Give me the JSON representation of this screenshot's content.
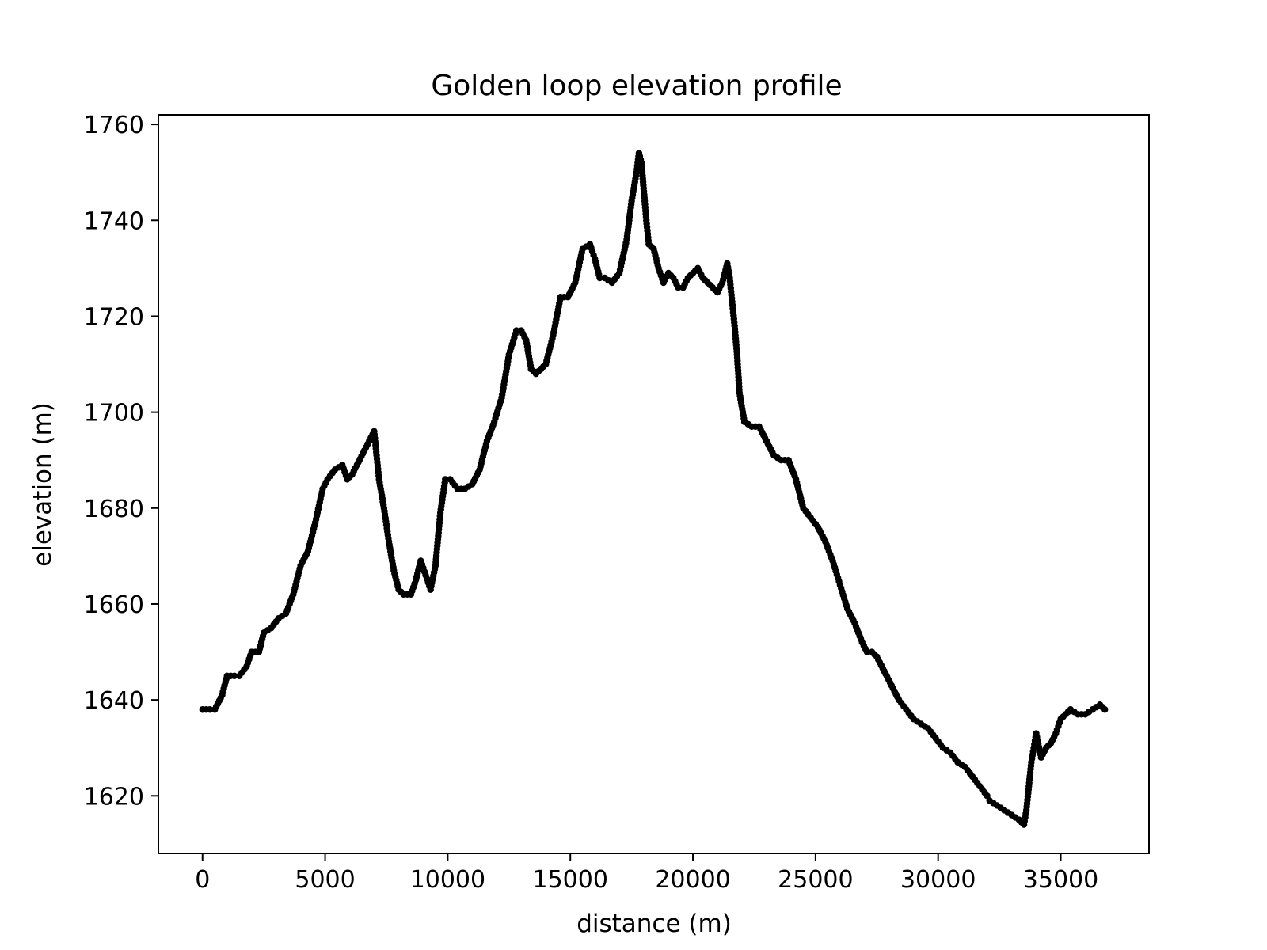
{
  "chart_data": {
    "type": "scatter",
    "title": "Golden loop elevation profile",
    "xlabel": "distance (m)",
    "ylabel": "elevation (m)",
    "xlim": [
      -1800,
      38600
    ],
    "ylim": [
      1608,
      1762
    ],
    "xticks": [
      0,
      5000,
      10000,
      15000,
      20000,
      25000,
      30000,
      35000
    ],
    "xtick_labels": [
      "0",
      "5000",
      "10000",
      "15000",
      "20000",
      "25000",
      "30000",
      "35000"
    ],
    "yticks": [
      1620,
      1640,
      1660,
      1680,
      1700,
      1720,
      1740,
      1760
    ],
    "ytick_labels": [
      "1620",
      "1640",
      "1660",
      "1680",
      "1700",
      "1720",
      "1740",
      "1760"
    ],
    "grid": false,
    "legend": "none",
    "marker_color": "#000000",
    "series": [
      {
        "x": [
          0,
          300,
          500,
          800,
          1000,
          1300,
          1500,
          1800,
          2000,
          2300,
          2500,
          2800,
          3100,
          3400,
          3700,
          4000,
          4300,
          4600,
          4900,
          5100,
          5400,
          5700,
          5900,
          6100,
          6300,
          6600,
          6800,
          7000,
          7100,
          7200,
          7400,
          7600,
          7800,
          8000,
          8200,
          8500,
          8700,
          8900,
          9100,
          9300,
          9500,
          9700,
          9900,
          10100,
          10400,
          10700,
          11000,
          11300,
          11600,
          11900,
          12200,
          12500,
          12800,
          13000,
          13200,
          13400,
          13600,
          13800,
          14000,
          14300,
          14600,
          14900,
          15200,
          15500,
          15800,
          16000,
          16200,
          16400,
          16700,
          17000,
          17300,
          17500,
          17700,
          17800,
          17900,
          18000,
          18100,
          18200,
          18400,
          18600,
          18800,
          19000,
          19200,
          19400,
          19600,
          19800,
          20000,
          20200,
          20400,
          20600,
          20800,
          21000,
          21200,
          21300,
          21400,
          21500,
          21600,
          21700,
          21800,
          21900,
          22100,
          22400,
          22700,
          23000,
          23300,
          23600,
          23900,
          24200,
          24500,
          24800,
          25100,
          25400,
          25700,
          26000,
          26300,
          26600,
          26900,
          27100,
          27300,
          27500,
          27800,
          28100,
          28400,
          28700,
          29000,
          29300,
          29600,
          29900,
          30200,
          30500,
          30800,
          31100,
          31400,
          31700,
          32000,
          32100,
          32400,
          32700,
          33000,
          33300,
          33500,
          33600,
          33700,
          33800,
          33900,
          34000,
          34200,
          34400,
          34600,
          34800,
          35000,
          35200,
          35400,
          35700,
          36000,
          36300,
          36600,
          36800
        ],
        "y": [
          1638,
          1638,
          1638,
          1641,
          1645,
          1645,
          1645,
          1647,
          1650,
          1650,
          1654,
          1655,
          1657,
          1658,
          1662,
          1668,
          1671,
          1677,
          1684,
          1686,
          1688,
          1689,
          1686,
          1687,
          1689,
          1692,
          1694,
          1696,
          1691,
          1686,
          1680,
          1673,
          1667,
          1663,
          1662,
          1662,
          1665,
          1669,
          1666,
          1663,
          1668,
          1679,
          1686,
          1686,
          1684,
          1684,
          1685,
          1688,
          1694,
          1698,
          1703,
          1712,
          1717,
          1717,
          1715,
          1709,
          1708,
          1709,
          1710,
          1716,
          1724,
          1724,
          1727,
          1734,
          1735,
          1732,
          1728,
          1728,
          1727,
          1729,
          1736,
          1744,
          1750,
          1754,
          1752,
          1746,
          1740,
          1735,
          1734,
          1730,
          1727,
          1729,
          1728,
          1726,
          1726,
          1728,
          1729,
          1730,
          1728,
          1727,
          1726,
          1725,
          1727,
          1729,
          1731,
          1728,
          1723,
          1718,
          1712,
          1704,
          1698,
          1697,
          1697,
          1694,
          1691,
          1690,
          1690,
          1686,
          1680,
          1678,
          1676,
          1673,
          1669,
          1664,
          1659,
          1656,
          1652,
          1650,
          1650,
          1649,
          1646,
          1643,
          1640,
          1638,
          1636,
          1635,
          1634,
          1632,
          1630,
          1629,
          1627,
          1626,
          1624,
          1622,
          1620,
          1619,
          1618,
          1617,
          1616,
          1615,
          1614,
          1617,
          1622,
          1627,
          1630,
          1633,
          1628,
          1630,
          1631,
          1633,
          1636,
          1637,
          1638,
          1637,
          1637,
          1638,
          1639,
          1638
        ]
      }
    ]
  }
}
